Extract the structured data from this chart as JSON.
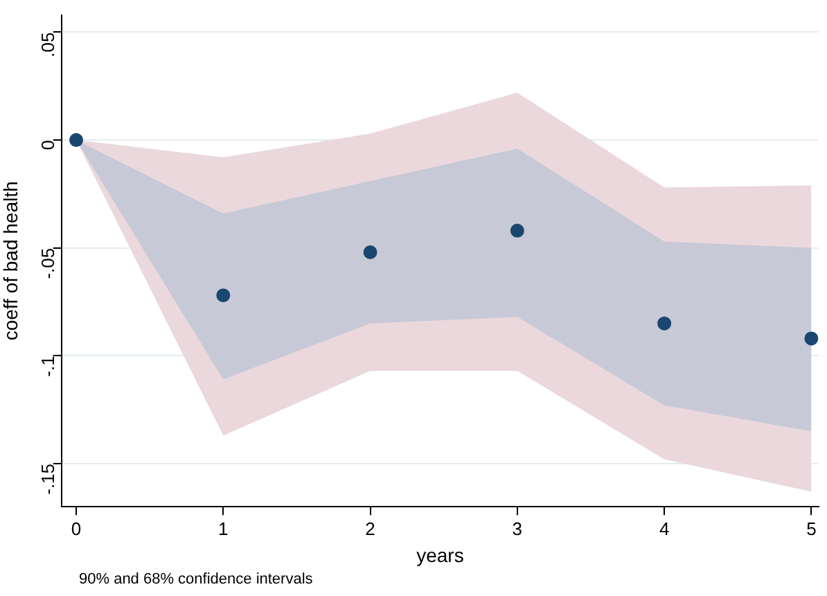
{
  "chart_data": {
    "type": "scatter",
    "xlabel": "years",
    "ylabel": "coeff of bad health",
    "x": [
      0,
      1,
      2,
      3,
      4,
      5
    ],
    "series": [
      {
        "type": "line",
        "color": "#ead8dc",
        "values": [
          null,
          null,
          null,
          null,
          null,
          null
        ],
        "lower": [
          0,
          -0.137,
          -0.107,
          -0.107,
          -0.148,
          -0.163
        ],
        "upper": [
          0,
          -0.008,
          0.003,
          0.022,
          -0.022,
          -0.021
        ]
      },
      {
        "type": "line",
        "color": "#c8c9d6",
        "values": [
          null,
          null,
          null,
          null,
          null,
          null
        ],
        "lower": [
          0,
          -0.111,
          -0.085,
          -0.082,
          -0.123,
          -0.135
        ],
        "upper": [
          0,
          -0.034,
          -0.019,
          -0.004,
          -0.047,
          -0.05
        ]
      },
      {
        "color": "#1a476f",
        "values": [
          0,
          -0.072,
          -0.052,
          -0.042,
          -0.085,
          -0.092
        ]
      }
    ],
    "xlim": [
      -0.1,
      5.05
    ],
    "xticks": [
      0,
      1,
      2,
      3,
      4,
      5
    ],
    "ylim": [
      -0.17,
      0.058
    ],
    "yticks": [
      {
        "value": 0.05,
        "label": ".05"
      },
      {
        "value": 0,
        "label": "0"
      },
      {
        "value": -0.05,
        "label": "-.05"
      },
      {
        "value": -0.1,
        "label": "-.1"
      },
      {
        "value": -0.15,
        "label": "-.15"
      }
    ],
    "grid": "y",
    "legend": false,
    "marker": "circle",
    "annotations": [
      "90% and 68% confidence intervals"
    ]
  }
}
